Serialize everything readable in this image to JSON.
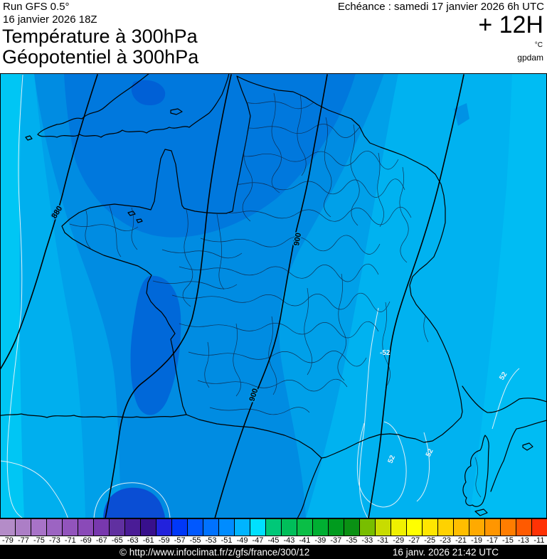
{
  "header": {
    "run_line1": "Run GFS 0.5°",
    "run_line2": "16 janvier 2026 18Z",
    "title_line1": "Température à 300hPa",
    "title_line2": "Géopotentiel à 300hPa",
    "echeance": "Echéance : samedi 17 janvier 2026 6h UTC",
    "step": "+ 12H",
    "unit_temp": "°C",
    "unit_geo": "gpdam"
  },
  "map": {
    "geo_labels": [
      {
        "text": "880"
      },
      {
        "text": "900"
      },
      {
        "text": "900"
      }
    ],
    "temp_labels": [
      {
        "text": "-52"
      },
      {
        "text": "52"
      },
      {
        "text": "52"
      },
      {
        "text": "52"
      }
    ],
    "colors": {
      "sea_base": "#00A0E9",
      "band_light_se": "#00B2F0",
      "band_lighter_e": "#00BCF3",
      "band_mid_dark": "#008CE2",
      "channel_pool": "#0078DD",
      "dark_patch": "#0060D6",
      "spain_pool": "#0A4ED4",
      "west_band": "#00AFEE",
      "west_cyan_strip": "#00C6F4",
      "coast_stroke": "#000000",
      "department_stroke": "#10294a",
      "geopotential_stroke": "#000000",
      "temperature_stroke": "#e9f3f8"
    }
  },
  "colorbar": {
    "ticks": [
      "-79",
      "-77",
      "-75",
      "-73",
      "-71",
      "-69",
      "-67",
      "-65",
      "-63",
      "-61",
      "-59",
      "-57",
      "-55",
      "-53",
      "-51",
      "-49",
      "-47",
      "-45",
      "-43",
      "-41",
      "-39",
      "-37",
      "-35",
      "-33",
      "-31",
      "-29",
      "-27",
      "-25",
      "-23",
      "-21",
      "-19",
      "-17",
      "-15",
      "-13",
      "-11"
    ],
    "colors": [
      "#B48CC8",
      "#AC7EC6",
      "#A873C8",
      "#9C64C2",
      "#9254BC",
      "#8A4AB8",
      "#7838AE",
      "#6030A0",
      "#4A1C96",
      "#38108C",
      "#2222DC",
      "#0038F8",
      "#0058FF",
      "#0072FF",
      "#008CFF",
      "#00B4FF",
      "#00E0FF",
      "#00C878",
      "#00BE5A",
      "#0ABE46",
      "#00AF32",
      "#009B1E",
      "#0A9114",
      "#78BE00",
      "#C8DC00",
      "#F0F000",
      "#FFFF00",
      "#FFE600",
      "#FFD200",
      "#FFBE00",
      "#FFAA00",
      "#FF9600",
      "#FF7D00",
      "#FF5A00",
      "#FF3205"
    ]
  },
  "footer": {
    "copyright": "© http://www.infoclimat.fr/z/gfs/france/300/12",
    "datetime": "16 janv. 2026 21:42 UTC"
  }
}
